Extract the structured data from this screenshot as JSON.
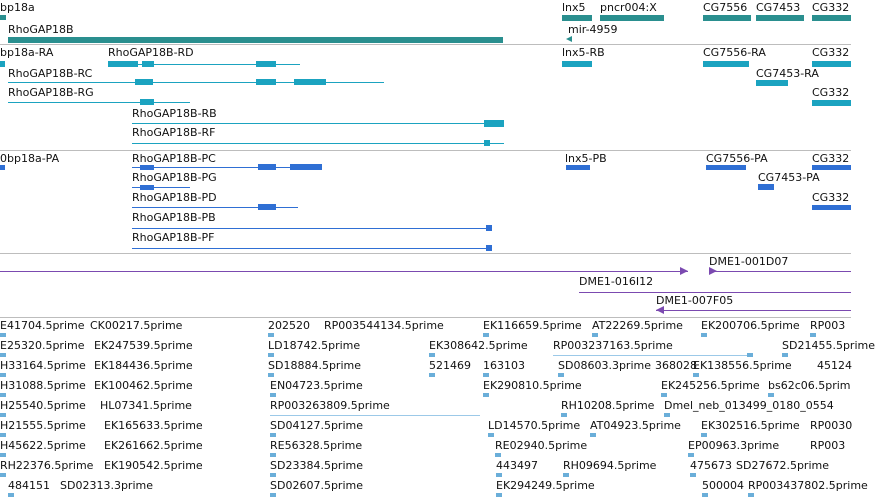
{
  "tracks": {
    "genes": {
      "labels": [
        "bp18a",
        "RhoGAP18B",
        "lnx5",
        "pncr004:X",
        "mir-4959",
        "CG7556",
        "CG7453",
        "CG332"
      ]
    },
    "transcripts": {
      "labels": [
        "bp18a-RA",
        "RhoGAP18B-RD",
        "lnx5-RB",
        "CG7556-RA",
        "CG332",
        "RhoGAP18B-RC",
        "CG7453-RA",
        "RhoGAP18B-RG",
        "CG332",
        "RhoGAP18B-RB",
        "RhoGAP18B-RF"
      ]
    },
    "proteins": {
      "labels": [
        "0bp18a-PA",
        "RhoGAP18B-PC",
        "lnx5-PB",
        "CG7556-PA",
        "CG332",
        "RhoGAP18B-PG",
        "CG7453-PA",
        "RhoGAP18B-PD",
        "CG332",
        "RhoGAP18B-PB",
        "RhoGAP18B-PF"
      ]
    },
    "clones": {
      "labels": [
        "DME1-001D07",
        "DME1-016I12",
        "DME1-007F05"
      ]
    },
    "ests": {
      "rows": [
        [
          "E41704.5prime",
          "CK00217.5prime",
          "202520",
          "RP003544134.5prime",
          "EK116659.5prime",
          "AT22269.5prime",
          "EK200706.5prime",
          "RP003"
        ],
        [
          "E25320.5prime",
          "EK247539.5prime",
          "LD18742.5prime",
          "EK308642.5prime",
          "RP003237163.5prime",
          "SD21455.5prime"
        ],
        [
          "H33164.5prime",
          "EK184436.5prime",
          "SD18884.5prime",
          "521469",
          "163103",
          "SD08603.3prime",
          "368028",
          "EK138556.5prime",
          "45124"
        ],
        [
          "H31088.5prime",
          "EK100462.5prime",
          "EN04723.5prime",
          "EK290810.5prime",
          "EK245256.5prime",
          "bs62c06.5prim"
        ],
        [
          "H25540.5prime",
          "HL07341.5prime",
          "RP003263809.5prime",
          "RH10208.5prime",
          "Dmel_neb_013499_0180_0554"
        ],
        [
          "H21555.5prime",
          "EK165633.5prime",
          "SD04127.5prime",
          "LD14570.5prime",
          "AT04923.5prime",
          "EK302516.5prime",
          "RP0030"
        ],
        [
          "H45622.5prime",
          "EK261662.5prime",
          "RE56328.5prime",
          "RE02940.5prime",
          "EP00963.3prime",
          "RP003"
        ],
        [
          "RH22376.5prime",
          "EK190542.5prime",
          "SD23384.5prime",
          "443497",
          "RH09694.5prime",
          "475673",
          "SD27672.5prime"
        ],
        [
          "484151",
          "SD02313.3prime",
          "SD02607.5prime",
          "EK294249.5prime",
          "500004",
          "RP003437802.5prime"
        ]
      ]
    }
  }
}
